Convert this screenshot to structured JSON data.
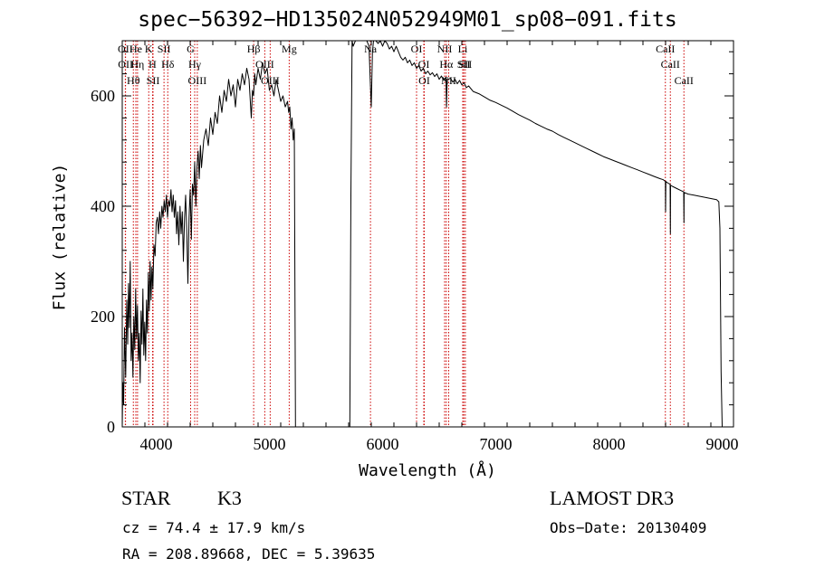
{
  "header": {
    "title": "spec−56392−HD135024N052949M01_sp08−091.fits"
  },
  "chart_data": {
    "type": "line",
    "title": "spec−56392−HD135024N052949M01_sp08−091.fits",
    "xlabel": "Wavelength (Å)",
    "ylabel": "Flux (relative)",
    "xlim": [
      3700,
      9100
    ],
    "ylim": [
      0,
      700
    ],
    "xticks": [
      4000,
      5000,
      6000,
      7000,
      8000,
      9000
    ],
    "yticks": [
      0,
      200,
      400,
      600
    ],
    "series": [
      {
        "name": "spectrum",
        "points": [
          [
            3700,
            0
          ],
          [
            3705,
            80
          ],
          [
            3712,
            40
          ],
          [
            3720,
            180
          ],
          [
            3730,
            90
          ],
          [
            3740,
            230
          ],
          [
            3748,
            150
          ],
          [
            3755,
            260
          ],
          [
            3762,
            180
          ],
          [
            3770,
            300
          ],
          [
            3778,
            120
          ],
          [
            3786,
            170
          ],
          [
            3794,
            90
          ],
          [
            3802,
            200
          ],
          [
            3810,
            140
          ],
          [
            3818,
            250
          ],
          [
            3826,
            160
          ],
          [
            3834,
            220
          ],
          [
            3842,
            120
          ],
          [
            3850,
            170
          ],
          [
            3858,
            80
          ],
          [
            3866,
            210
          ],
          [
            3874,
            150
          ],
          [
            3882,
            250
          ],
          [
            3890,
            130
          ],
          [
            3898,
            190
          ],
          [
            3906,
            120
          ],
          [
            3914,
            230
          ],
          [
            3922,
            170
          ],
          [
            3930,
            280
          ],
          [
            3938,
            210
          ],
          [
            3946,
            300
          ],
          [
            3954,
            230
          ],
          [
            3962,
            290
          ],
          [
            3970,
            250
          ],
          [
            3980,
            330
          ],
          [
            3990,
            310
          ],
          [
            4000,
            370
          ],
          [
            4010,
            380
          ],
          [
            4020,
            350
          ],
          [
            4030,
            390
          ],
          [
            4040,
            360
          ],
          [
            4050,
            400
          ],
          [
            4060,
            380
          ],
          [
            4070,
            410
          ],
          [
            4080,
            390
          ],
          [
            4090,
            420
          ],
          [
            4100,
            380
          ],
          [
            4110,
            410
          ],
          [
            4120,
            400
          ],
          [
            4130,
            430
          ],
          [
            4140,
            390
          ],
          [
            4150,
            420
          ],
          [
            4160,
            380
          ],
          [
            4170,
            410
          ],
          [
            4180,
            350
          ],
          [
            4190,
            390
          ],
          [
            4200,
            330
          ],
          [
            4210,
            400
          ],
          [
            4220,
            350
          ],
          [
            4230,
            390
          ],
          [
            4240,
            300
          ],
          [
            4250,
            380
          ],
          [
            4260,
            420
          ],
          [
            4270,
            350
          ],
          [
            4280,
            260
          ],
          [
            4290,
            380
          ],
          [
            4300,
            430
          ],
          [
            4310,
            340
          ],
          [
            4320,
            440
          ],
          [
            4330,
            420
          ],
          [
            4340,
            480
          ],
          [
            4350,
            400
          ],
          [
            4360,
            470
          ],
          [
            4370,
            500
          ],
          [
            4380,
            450
          ],
          [
            4390,
            510
          ],
          [
            4400,
            470
          ],
          [
            4420,
            520
          ],
          [
            4440,
            540
          ],
          [
            4460,
            510
          ],
          [
            4480,
            560
          ],
          [
            4500,
            530
          ],
          [
            4520,
            570
          ],
          [
            4540,
            550
          ],
          [
            4560,
            600
          ],
          [
            4580,
            570
          ],
          [
            4600,
            610
          ],
          [
            4620,
            590
          ],
          [
            4640,
            630
          ],
          [
            4660,
            600
          ],
          [
            4680,
            620
          ],
          [
            4700,
            580
          ],
          [
            4720,
            630
          ],
          [
            4740,
            610
          ],
          [
            4760,
            640
          ],
          [
            4780,
            620
          ],
          [
            4800,
            650
          ],
          [
            4820,
            630
          ],
          [
            4840,
            560
          ],
          [
            4850,
            610
          ],
          [
            4860,
            600
          ],
          [
            4870,
            640
          ],
          [
            4880,
            620
          ],
          [
            4900,
            650
          ],
          [
            4920,
            630
          ],
          [
            4940,
            660
          ],
          [
            4960,
            640
          ],
          [
            4980,
            650
          ],
          [
            5000,
            610
          ],
          [
            5020,
            620
          ],
          [
            5040,
            600
          ],
          [
            5060,
            630
          ],
          [
            5080,
            610
          ],
          [
            5100,
            590
          ],
          [
            5120,
            600
          ],
          [
            5140,
            580
          ],
          [
            5160,
            590
          ],
          [
            5170,
            570
          ],
          [
            5180,
            580
          ],
          [
            5190,
            540
          ],
          [
            5200,
            560
          ],
          [
            5210,
            520
          ],
          [
            5220,
            540
          ],
          [
            5230,
            0
          ],
          [
            5710,
            0
          ],
          [
            5720,
            420
          ],
          [
            5730,
            700
          ],
          [
            5740,
            690
          ],
          [
            5760,
            710
          ],
          [
            5780,
            700
          ],
          [
            5800,
            710
          ],
          [
            5820,
            705
          ],
          [
            5840,
            700
          ],
          [
            5860,
            710
          ],
          [
            5880,
            690
          ],
          [
            5890,
            630
          ],
          [
            5900,
            580
          ],
          [
            5910,
            680
          ],
          [
            5920,
            700
          ],
          [
            5940,
            705
          ],
          [
            5960,
            695
          ],
          [
            5980,
            700
          ],
          [
            6000,
            690
          ],
          [
            6020,
            700
          ],
          [
            6040,
            695
          ],
          [
            6060,
            685
          ],
          [
            6080,
            690
          ],
          [
            6100,
            680
          ],
          [
            6120,
            690
          ],
          [
            6140,
            680
          ],
          [
            6160,
            670
          ],
          [
            6180,
            665
          ],
          [
            6200,
            670
          ],
          [
            6220,
            660
          ],
          [
            6240,
            665
          ],
          [
            6260,
            655
          ],
          [
            6280,
            660
          ],
          [
            6300,
            650
          ],
          [
            6320,
            655
          ],
          [
            6340,
            645
          ],
          [
            6360,
            650
          ],
          [
            6380,
            640
          ],
          [
            6400,
            645
          ],
          [
            6420,
            638
          ],
          [
            6440,
            642
          ],
          [
            6460,
            635
          ],
          [
            6480,
            640
          ],
          [
            6500,
            630
          ],
          [
            6520,
            636
          ],
          [
            6540,
            628
          ],
          [
            6560,
            634
          ],
          [
            6565,
            580
          ],
          [
            6570,
            630
          ],
          [
            6580,
            630
          ],
          [
            6600,
            632
          ],
          [
            6620,
            625
          ],
          [
            6640,
            630
          ],
          [
            6660,
            622
          ],
          [
            6680,
            628
          ],
          [
            6700,
            620
          ],
          [
            6720,
            624
          ],
          [
            6740,
            615
          ],
          [
            6760,
            618
          ],
          [
            6800,
            608
          ],
          [
            6850,
            604
          ],
          [
            6900,
            598
          ],
          [
            6950,
            592
          ],
          [
            7000,
            588
          ],
          [
            7050,
            583
          ],
          [
            7100,
            578
          ],
          [
            7150,
            572
          ],
          [
            7200,
            566
          ],
          [
            7250,
            561
          ],
          [
            7300,
            556
          ],
          [
            7350,
            550
          ],
          [
            7400,
            545
          ],
          [
            7450,
            540
          ],
          [
            7500,
            536
          ],
          [
            7550,
            530
          ],
          [
            7600,
            525
          ],
          [
            7650,
            520
          ],
          [
            7700,
            515
          ],
          [
            7750,
            510
          ],
          [
            7800,
            505
          ],
          [
            7850,
            500
          ],
          [
            7900,
            495
          ],
          [
            7950,
            490
          ],
          [
            8000,
            486
          ],
          [
            8050,
            482
          ],
          [
            8100,
            478
          ],
          [
            8150,
            474
          ],
          [
            8200,
            470
          ],
          [
            8250,
            466
          ],
          [
            8300,
            462
          ],
          [
            8350,
            458
          ],
          [
            8400,
            454
          ],
          [
            8450,
            450
          ],
          [
            8480,
            448
          ],
          [
            8498,
            445
          ],
          [
            8500,
            390
          ],
          [
            8502,
            445
          ],
          [
            8520,
            442
          ],
          [
            8540,
            440
          ],
          [
            8542,
            350
          ],
          [
            8544,
            438
          ],
          [
            8560,
            436
          ],
          [
            8600,
            432
          ],
          [
            8640,
            428
          ],
          [
            8660,
            426
          ],
          [
            8662,
            370
          ],
          [
            8664,
            425
          ],
          [
            8700,
            422
          ],
          [
            8750,
            420
          ],
          [
            8800,
            418
          ],
          [
            8850,
            416
          ],
          [
            8900,
            414
          ],
          [
            8950,
            412
          ],
          [
            8970,
            408
          ],
          [
            8980,
            360
          ],
          [
            8990,
            100
          ],
          [
            9000,
            0
          ]
        ]
      }
    ],
    "line_markers": [
      {
        "label": "Hθ",
        "x": 3798
      },
      {
        "label": "OII",
        "x": 3727
      },
      {
        "label": "OII",
        "x": 3729
      },
      {
        "label": "He",
        "x": 3820
      },
      {
        "label": "Hη",
        "x": 3835
      },
      {
        "label": "K",
        "x": 3934
      },
      {
        "label": "SII",
        "x": 3972
      },
      {
        "label": "H",
        "x": 3968
      },
      {
        "label": "Hδ",
        "x": 4102
      },
      {
        "label": "SII",
        "x": 4069
      },
      {
        "label": "OIII",
        "x": 4363
      },
      {
        "label": "Hγ",
        "x": 4340
      },
      {
        "label": "G",
        "x": 4304
      },
      {
        "label": "Hβ",
        "x": 4861
      },
      {
        "label": "OIII",
        "x": 4959
      },
      {
        "label": "OIII",
        "x": 5007
      },
      {
        "label": "Mg",
        "x": 5175
      },
      {
        "label": "Na",
        "x": 5893
      },
      {
        "label": "OI",
        "x": 6300
      },
      {
        "label": "OI",
        "x": 6364
      },
      {
        "label": "OI",
        "x": 6368
      },
      {
        "label": "Hα",
        "x": 6563
      },
      {
        "label": "NII",
        "x": 6548
      },
      {
        "label": "NII",
        "x": 6584
      },
      {
        "label": "SII",
        "x": 6717
      },
      {
        "label": "SII",
        "x": 6731
      },
      {
        "label": "Li",
        "x": 6708
      },
      {
        "label": "CaII",
        "x": 8498
      },
      {
        "label": "CaII",
        "x": 8542
      },
      {
        "label": "CaII",
        "x": 8662
      }
    ]
  },
  "info": {
    "class_label": "STAR",
    "subclass_label": "K3",
    "survey_label": "LAMOST DR3",
    "cz_text": "cz = 74.4 ± 17.9 km/s",
    "obsdate_text": "Obs−Date: 20130409",
    "radec_text": "RA = 208.89668, DEC =    5.39635"
  },
  "colors": {
    "axis": "#000000",
    "spectrum": "#000000",
    "marker": "#cc0000"
  }
}
